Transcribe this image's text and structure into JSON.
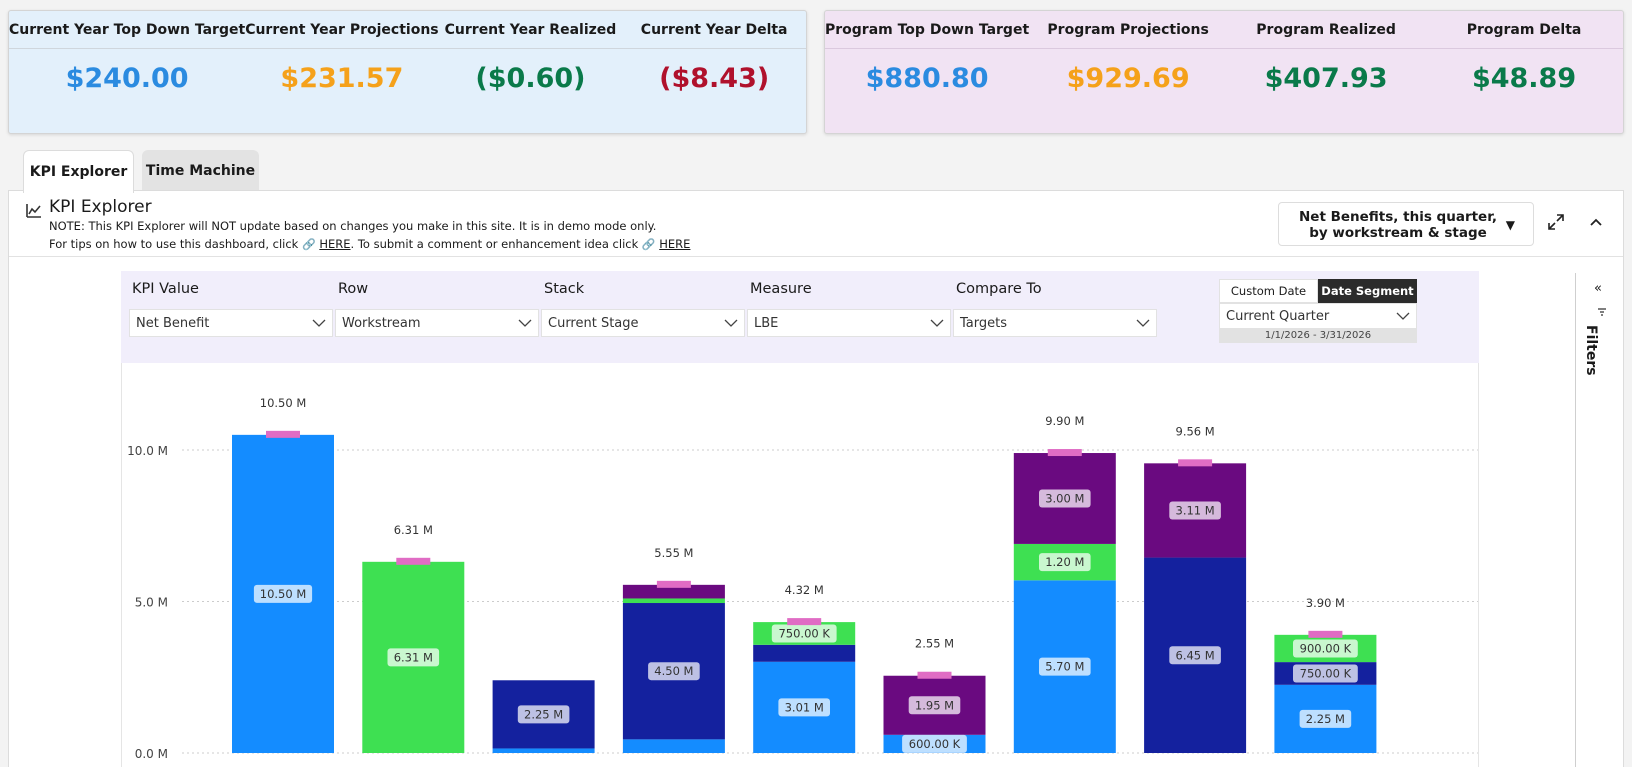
{
  "current_year": {
    "items": [
      {
        "label": "Current Year Top Down Target",
        "value": "$240.00",
        "color": "#2b8be0"
      },
      {
        "label": "Current Year Projections",
        "value": "$231.57",
        "color": "#f5a11a"
      },
      {
        "label": "Current Year Realized",
        "value": "($0.60)",
        "color": "#0a7a4a"
      },
      {
        "label": "Current Year Delta",
        "value": "($8.43)",
        "color": "#b0112c"
      }
    ]
  },
  "program": {
    "items": [
      {
        "label": "Program Top Down Target",
        "value": "$880.80",
        "color": "#2b8be0"
      },
      {
        "label": "Program Projections",
        "value": "$929.69",
        "color": "#f5a11a"
      },
      {
        "label": "Program Realized",
        "value": "$407.93",
        "color": "#0a7a4a"
      },
      {
        "label": "Program Delta",
        "value": "$48.89",
        "color": "#0a7a4a"
      }
    ]
  },
  "tabs": [
    "KPI Explorer",
    "Time Machine"
  ],
  "card": {
    "title": "KPI Explorer",
    "note": "NOTE: This KPI Explorer will NOT update based on changes you make in this site. It is in demo mode only.",
    "tips_prefix": "For tips on how to use this dashboard, click",
    "tips_link1": "HERE",
    "tips_mid": ". To submit a comment or enhancement idea click",
    "tips_link2": "HERE",
    "view_select": "Net Benefits, this quarter, by workstream & stage"
  },
  "filters": {
    "kpi_value": {
      "label": "KPI Value",
      "value": "Net Benefit"
    },
    "row": {
      "label": "Row",
      "value": "Workstream"
    },
    "stack": {
      "label": "Stack",
      "value": "Current Stage"
    },
    "measure": {
      "label": "Measure",
      "value": "LBE"
    },
    "compare_to": {
      "label": "Compare To",
      "value": "Targets"
    },
    "date": {
      "custom_label": "Custom Date",
      "segment_label": "Date Segment",
      "value": "Current Quarter",
      "range": "1/1/2026 - 3/31/2026"
    }
  },
  "sidebar": {
    "label": "Filters"
  },
  "colors": {
    "blue": "#148cff",
    "green": "#3ee052",
    "navy": "#14219e",
    "purple": "#6a0a80",
    "target": "#e06cc4"
  },
  "chart_data": {
    "type": "bar",
    "stacked": true,
    "y_ticks": [
      {
        "value": 0,
        "label": "0.0 M"
      },
      {
        "value": 5,
        "label": "5.0 M"
      },
      {
        "value": 10,
        "label": "10.0 M"
      }
    ],
    "ylim": [
      0,
      11.5
    ],
    "bars": [
      {
        "total_label": "10.50 M",
        "target": 10.5,
        "segments": [
          {
            "stage": "blue",
            "value": 10.5,
            "label": "10.50 M"
          }
        ]
      },
      {
        "total_label": "6.31 M",
        "target": 6.31,
        "segments": [
          {
            "stage": "green",
            "value": 6.31,
            "label": "6.31 M"
          }
        ]
      },
      {
        "total_label": "",
        "target": null,
        "segments": [
          {
            "stage": "blue",
            "value": 0.15,
            "label": ""
          },
          {
            "stage": "navy",
            "value": 2.25,
            "label": "2.25 M"
          }
        ]
      },
      {
        "total_label": "5.55 M",
        "target": 5.55,
        "segments": [
          {
            "stage": "blue",
            "value": 0.45,
            "label": ""
          },
          {
            "stage": "navy",
            "value": 4.5,
            "label": "4.50 M"
          },
          {
            "stage": "green",
            "value": 0.15,
            "label": ""
          },
          {
            "stage": "purple",
            "value": 0.45,
            "label": ""
          }
        ]
      },
      {
        "total_label": "4.32 M",
        "target": 4.32,
        "segments": [
          {
            "stage": "blue",
            "value": 3.01,
            "label": "3.01 M"
          },
          {
            "stage": "navy",
            "value": 0.56,
            "label": ""
          },
          {
            "stage": "green",
            "value": 0.75,
            "label": "750.00 K"
          }
        ]
      },
      {
        "total_label": "2.55 M",
        "target": 2.55,
        "segments": [
          {
            "stage": "blue",
            "value": 0.6,
            "label": "600.00 K"
          },
          {
            "stage": "purple",
            "value": 1.95,
            "label": "1.95 M"
          }
        ]
      },
      {
        "total_label": "9.90 M",
        "target": 9.9,
        "segments": [
          {
            "stage": "blue",
            "value": 5.7,
            "label": "5.70 M"
          },
          {
            "stage": "green",
            "value": 1.2,
            "label": "1.20 M"
          },
          {
            "stage": "purple",
            "value": 3.0,
            "label": "3.00 M"
          }
        ]
      },
      {
        "total_label": "9.56 M",
        "target": 9.56,
        "segments": [
          {
            "stage": "navy",
            "value": 6.45,
            "label": "6.45 M"
          },
          {
            "stage": "purple",
            "value": 3.11,
            "label": "3.11 M"
          }
        ]
      },
      {
        "total_label": "3.90 M",
        "target": 3.9,
        "segments": [
          {
            "stage": "blue",
            "value": 2.25,
            "label": "2.25 M"
          },
          {
            "stage": "navy",
            "value": 0.75,
            "label": "750.00 K"
          },
          {
            "stage": "green",
            "value": 0.9,
            "label": "900.00 K"
          }
        ]
      }
    ]
  }
}
